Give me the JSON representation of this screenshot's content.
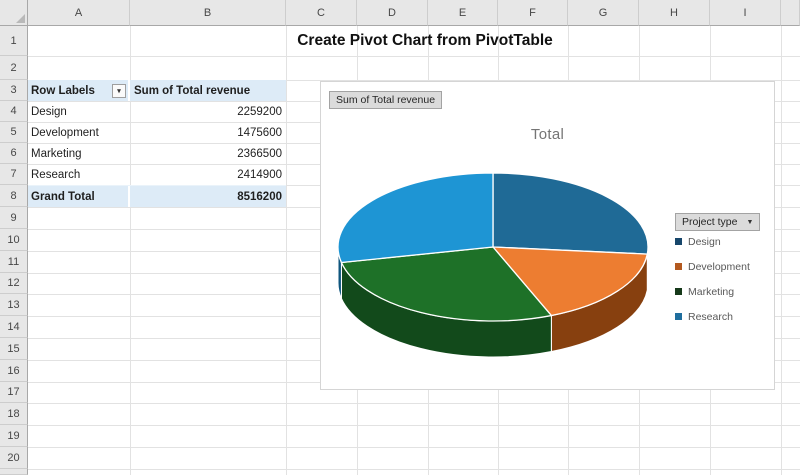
{
  "sheet": {
    "column_headers": [
      "A",
      "B",
      "C",
      "D",
      "E",
      "F",
      "G",
      "H",
      "I"
    ],
    "row_numbers": [
      "1",
      "2",
      "3",
      "4",
      "5",
      "6",
      "7",
      "8",
      "9",
      "10",
      "11",
      "12",
      "13",
      "14",
      "15",
      "16",
      "17",
      "18",
      "19",
      "20"
    ],
    "title": "Create Pivot Chart from PivotTable"
  },
  "pivot_table": {
    "header": {
      "row_labels": "Row Labels",
      "value_label": "Sum of Total revenue"
    },
    "rows": [
      {
        "label": "Design",
        "value": "2259200"
      },
      {
        "label": "Development",
        "value": "1475600"
      },
      {
        "label": "Marketing",
        "value": "2366500"
      },
      {
        "label": "Research",
        "value": "2414900"
      }
    ],
    "grand_total": {
      "label": "Grand Total",
      "value": "8516200"
    },
    "header_fill": "#DDEBF7"
  },
  "chart": {
    "value_field_button": "Sum of Total revenue",
    "axis_field_button": "Project type",
    "title": "Total"
  },
  "chart_data": {
    "type": "pie",
    "style": "3d",
    "title": "Total",
    "categories": [
      "Design",
      "Development",
      "Marketing",
      "Research"
    ],
    "values": [
      2259200,
      1475600,
      2366500,
      2414900
    ],
    "total": 8516200,
    "percentages": [
      26.5,
      17.3,
      27.8,
      28.4
    ],
    "slice_colors": [
      "#1F6A96",
      "#ED7D31",
      "#1E7128",
      "#1E95D4"
    ],
    "slice_side_colors": [
      "#123F5C",
      "#87400F",
      "#124A1B",
      "#0F567E"
    ],
    "legend_marker_colors": [
      "#17466B",
      "#B3591F",
      "#16391A",
      "#1F6E9E"
    ],
    "legend_position": "right",
    "start_angle_deg": 0,
    "direction": "clockwise"
  }
}
